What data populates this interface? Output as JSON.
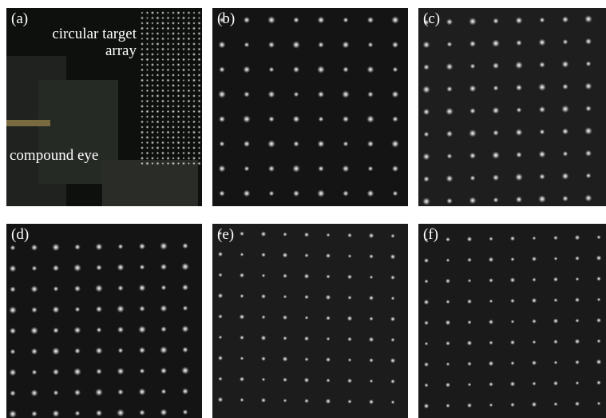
{
  "panels": [
    {
      "label": "(a)",
      "annotations": [
        "circular target array",
        "compound eye"
      ]
    },
    {
      "label": "(b)"
    },
    {
      "label": "(c)"
    },
    {
      "label": "(d)"
    },
    {
      "label": "(e)"
    },
    {
      "label": "(f)"
    }
  ]
}
